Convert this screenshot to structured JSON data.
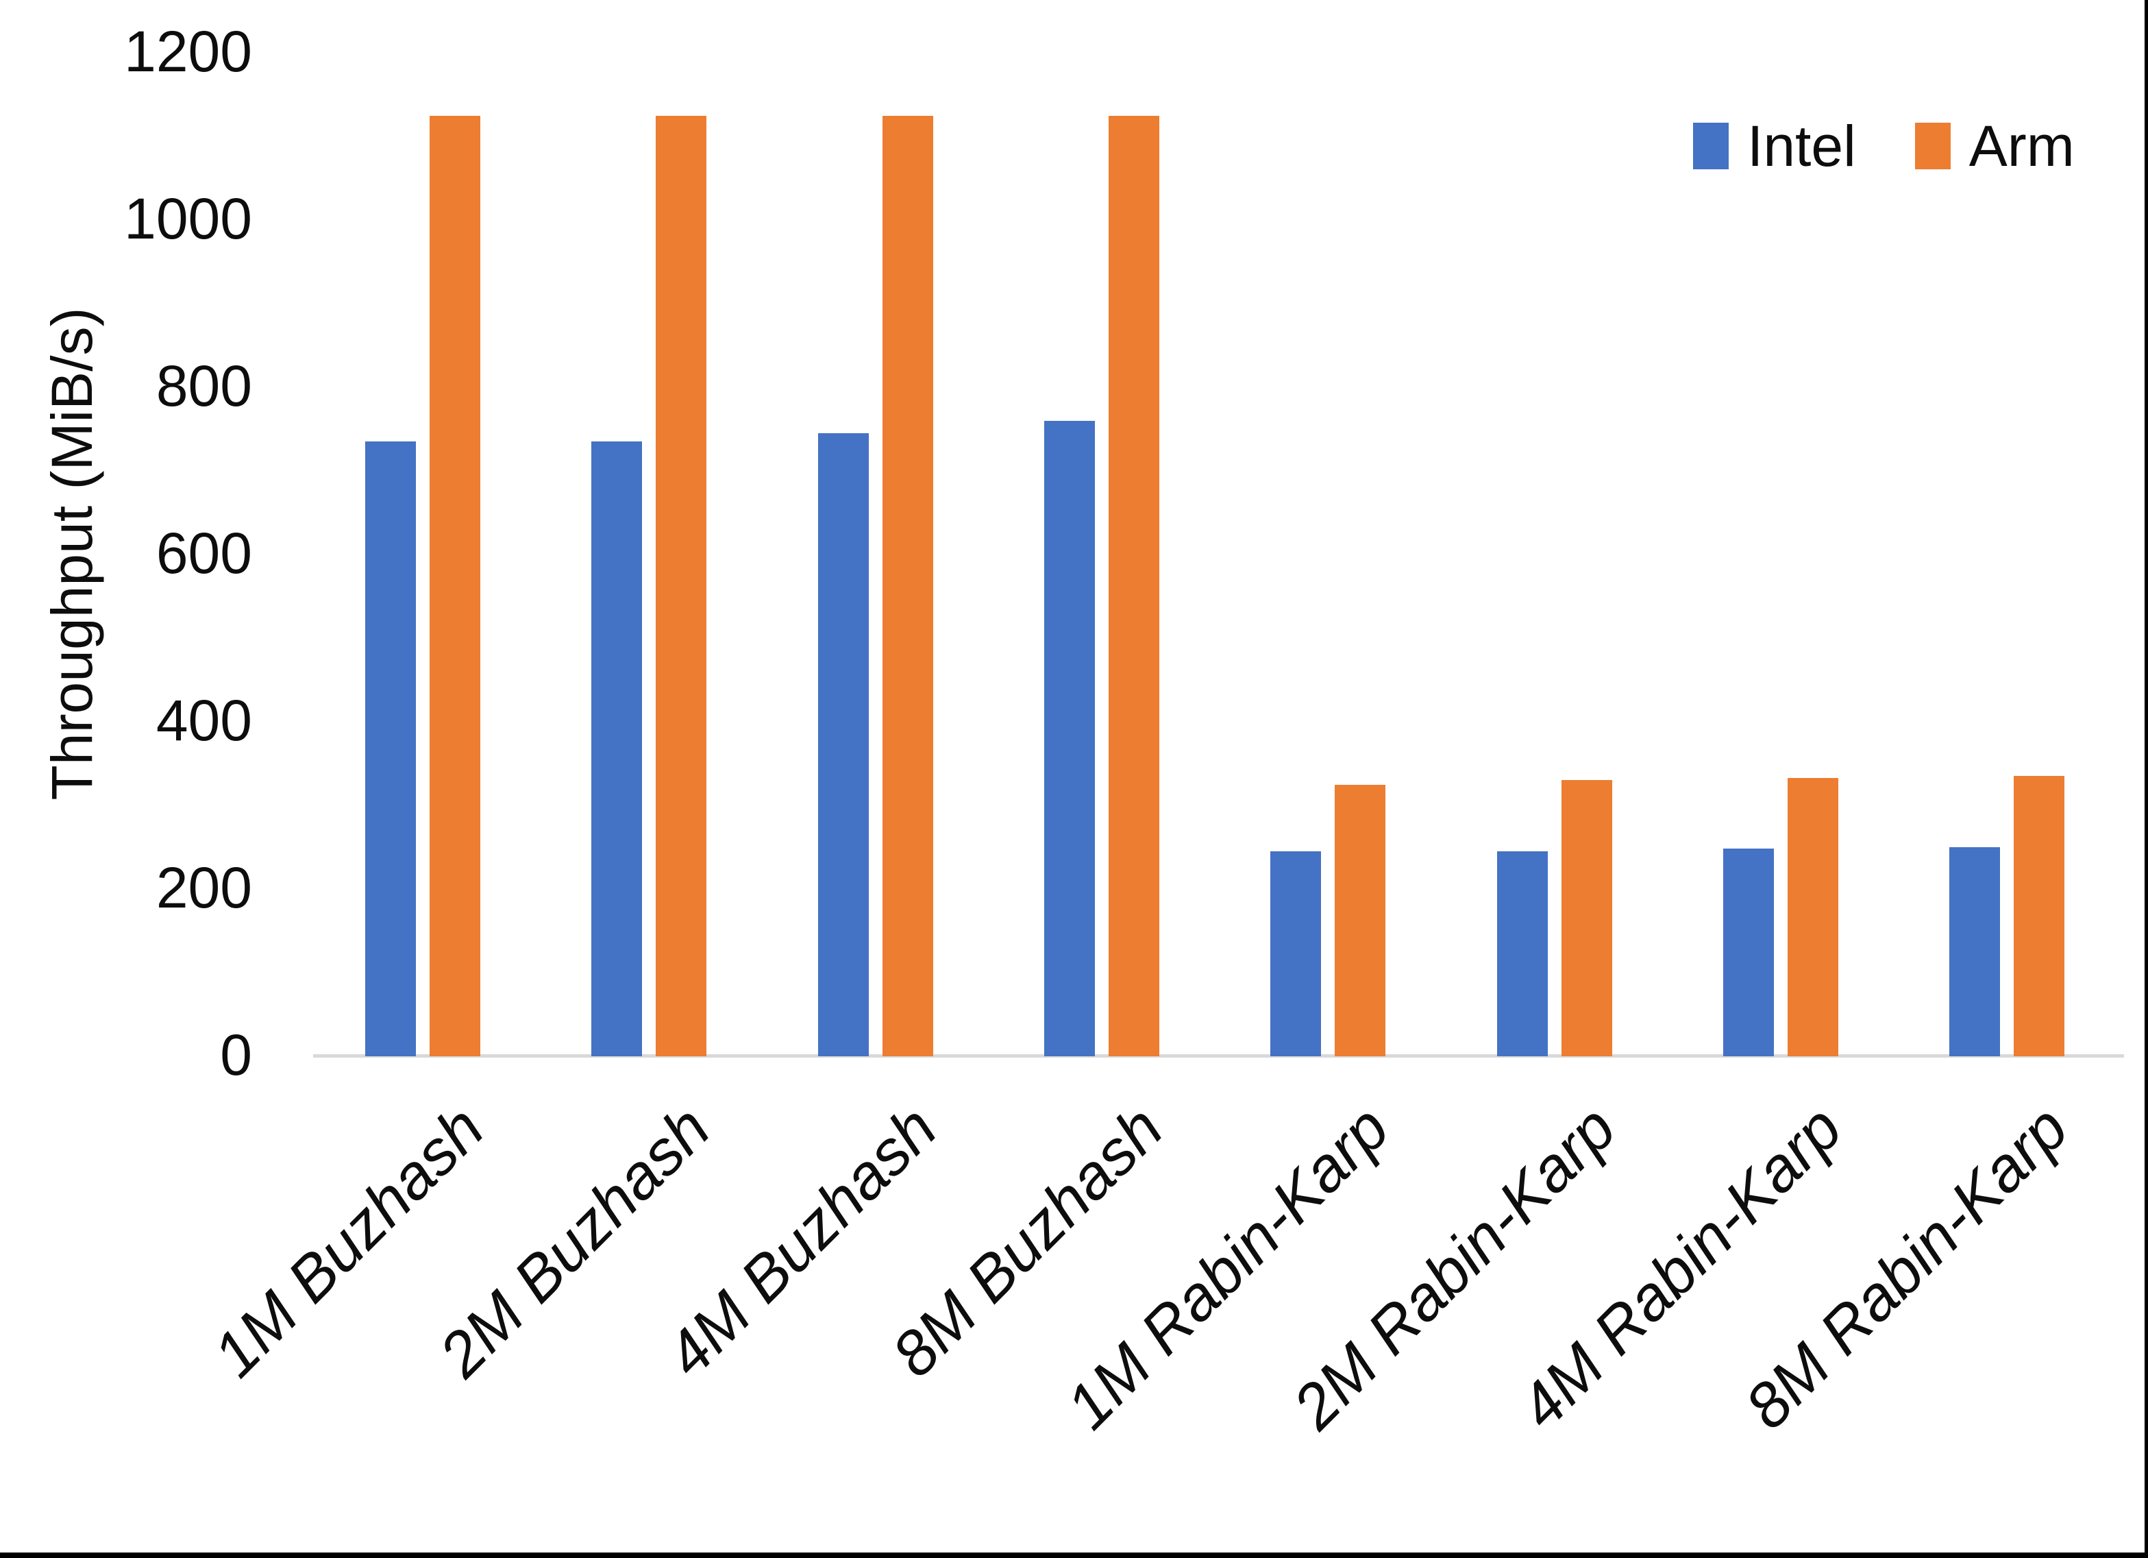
{
  "chart_data": {
    "type": "bar",
    "title": "",
    "xlabel": "",
    "ylabel": "Throughput (MiB/s)",
    "categories": [
      "1M Buzhash",
      "2M Buzhash",
      "4M Buzhash",
      "8M Buzhash",
      "1M Rabin-Karp",
      "2M Rabin-Karp",
      "4M Rabin-Karp",
      "8M Rabin-Karp"
    ],
    "series": [
      {
        "name": "Intel",
        "color": "#4472C4",
        "values": [
          735,
          735,
          745,
          760,
          245,
          245,
          248,
          250
        ]
      },
      {
        "name": "Arm",
        "color": "#ED7D31",
        "values": [
          1125,
          1125,
          1125,
          1125,
          325,
          330,
          333,
          335
        ]
      }
    ],
    "ylim": [
      0,
      1200
    ],
    "yticks": [
      0,
      200,
      400,
      600,
      800,
      1000,
      1200
    ],
    "grid": "off",
    "legend_position": "top-right",
    "axis_line_color": "#D9D9D9",
    "text_color": "#0d0d0d",
    "background": "#ffffff",
    "page_edge_color": "#000000"
  },
  "legend": {
    "items": [
      {
        "label": "Intel",
        "color": "#4472C4"
      },
      {
        "label": "Arm",
        "color": "#ED7D31"
      }
    ]
  }
}
